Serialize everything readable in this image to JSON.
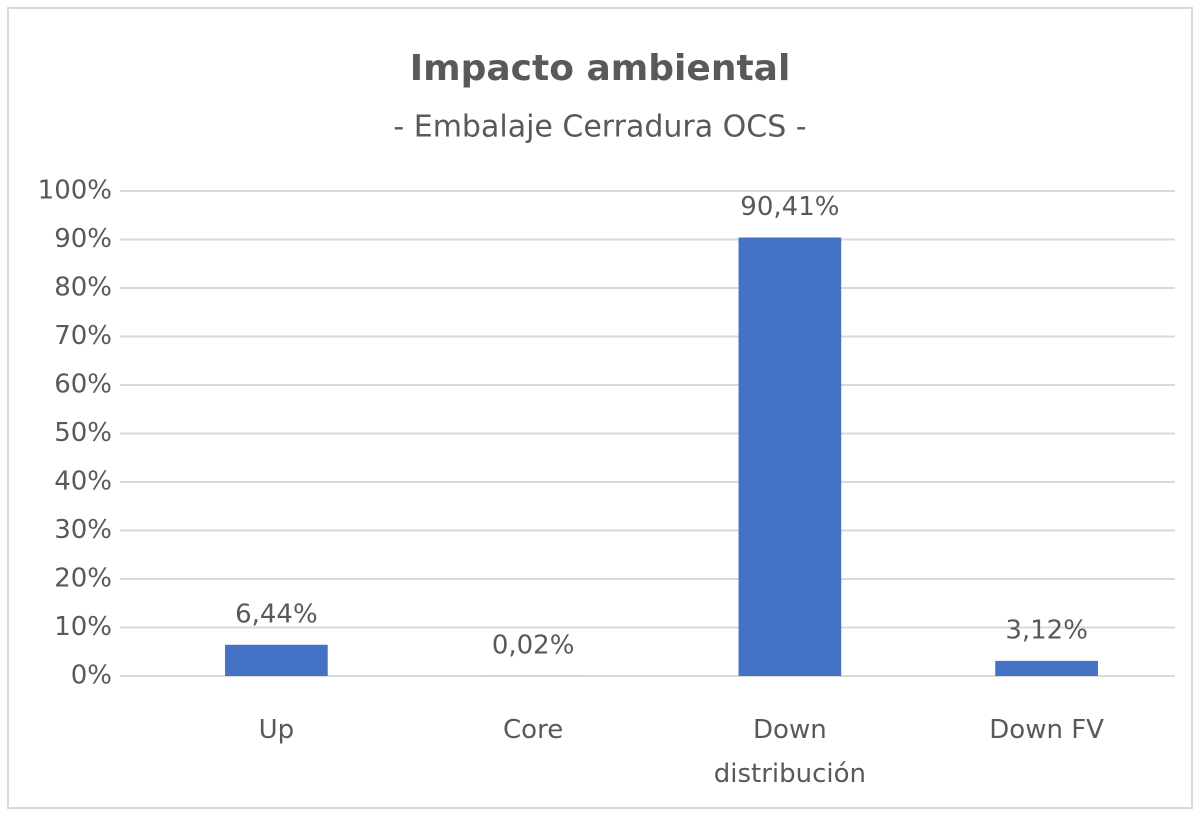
{
  "chart_data": {
    "type": "bar",
    "title": "Impacto ambiental",
    "subtitle": "- Embalaje Cerradura OCS -",
    "categories": [
      "Up",
      "Core",
      "Down distribución",
      "Down FV"
    ],
    "values": [
      6.44,
      0.02,
      90.41,
      3.12
    ],
    "value_labels": [
      "6,44%",
      "0,02%",
      "90,41%",
      "3,12%"
    ],
    "color": "#4472c4",
    "ylim": [
      0,
      100
    ],
    "yticks": [
      {
        "value": 0,
        "label": "0%"
      },
      {
        "value": 10,
        "label": "10%"
      },
      {
        "value": 20,
        "label": "20%"
      },
      {
        "value": 30,
        "label": "30%"
      },
      {
        "value": 40,
        "label": "40%"
      },
      {
        "value": 50,
        "label": "50%"
      },
      {
        "value": 60,
        "label": "60%"
      },
      {
        "value": 70,
        "label": "70%"
      },
      {
        "value": 80,
        "label": "80%"
      },
      {
        "value": 90,
        "label": "90%"
      },
      {
        "value": 100,
        "label": "100%"
      }
    ],
    "grid": true
  }
}
